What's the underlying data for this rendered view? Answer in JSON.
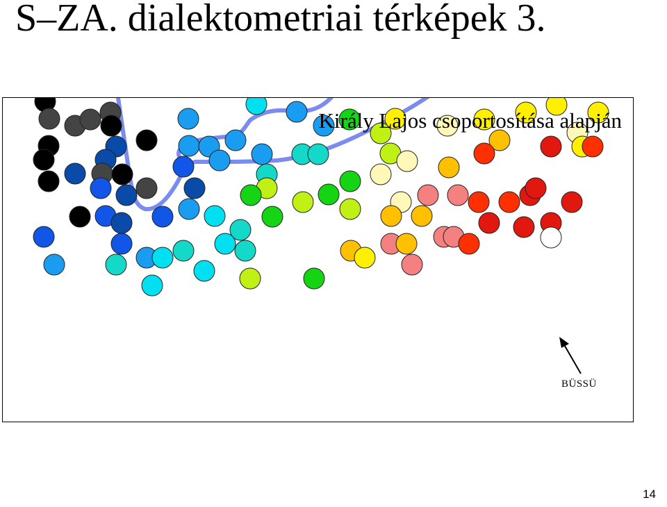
{
  "slide": {
    "title": "S–ZA. dialektometriai térképek 3.",
    "page_number": "14"
  },
  "map": {
    "caption": "Király Lajos csoportosítása alapján",
    "highlight_label": "BÜSSÜ",
    "boundary_color": "#7b8bee",
    "arrow_icon": "arrow-up-left-icon",
    "point_colors": {
      "black": "#000000",
      "darkgray": "#444444",
      "navy": "#0a4aa8",
      "blue": "#1256e8",
      "azure": "#1a9cf0",
      "cyan": "#00e0f0",
      "turquoise": "#14d8c8",
      "green": "#14d414",
      "yellowgreen": "#c0f014",
      "yellow": "#fff000",
      "lightyellow": "#fff8b8",
      "gold": "#ffc000",
      "salmon": "#f48080",
      "orangered": "#ff3000",
      "red": "#e01810",
      "white": "#ffffff"
    }
  }
}
